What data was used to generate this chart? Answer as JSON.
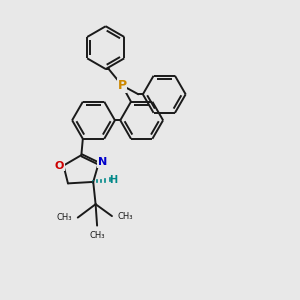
{
  "bg_color": "#e8e8e8",
  "line_color": "#1a1a1a",
  "bond_width": 1.4,
  "P_color": "#cc8800",
  "N_color": "#0000cc",
  "O_color": "#cc0000",
  "H_color": "#008888",
  "figsize": [
    3.0,
    3.0
  ],
  "dpi": 100,
  "xlim": [
    0,
    10
  ],
  "ylim": [
    0,
    10
  ]
}
